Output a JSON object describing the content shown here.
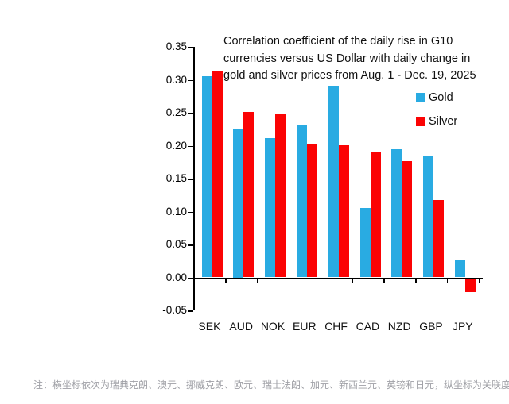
{
  "title_lines": [
    "Correlation coefficient of the daily rise in G10",
    "currencies versus US Dollar with daily change in",
    "gold and silver prices from Aug. 1 - Dec. 19, 2025"
  ],
  "note": "注：横坐标依次为瑞典克朗、澳元、挪威克朗、欧元、瑞士法朗、加元、新西兰元、英镑和日元，纵坐标为关联度",
  "colors": {
    "gold_series": "#29ABE2",
    "silver_series": "#FB0304",
    "axis": "#000000",
    "note_text": "#9FA0A6"
  },
  "chart_data": {
    "type": "bar",
    "title": "Correlation coefficient of the daily rise in G10 currencies versus US Dollar with daily change in gold and silver prices from Aug. 1 - Dec. 19, 2025",
    "categories": [
      "SEK",
      "AUD",
      "NOK",
      "EUR",
      "CHF",
      "CAD",
      "NZD",
      "GBP",
      "JPY"
    ],
    "series": [
      {
        "name": "Gold",
        "color": "#29ABE2",
        "values": [
          0.305,
          0.225,
          0.211,
          0.232,
          0.291,
          0.105,
          0.195,
          0.184,
          0.026
        ]
      },
      {
        "name": "Silver",
        "color": "#FB0304",
        "values": [
          0.313,
          0.251,
          0.248,
          0.203,
          0.201,
          0.19,
          0.176,
          0.118,
          -0.02
        ]
      }
    ],
    "ylim": [
      -0.05,
      0.35
    ],
    "yticks": [
      0.35,
      0.3,
      0.25,
      0.2,
      0.15,
      0.1,
      0.05,
      0.0,
      -0.05
    ],
    "xlabel": "",
    "ylabel": "",
    "grid": false,
    "legend_position": "upper right"
  }
}
